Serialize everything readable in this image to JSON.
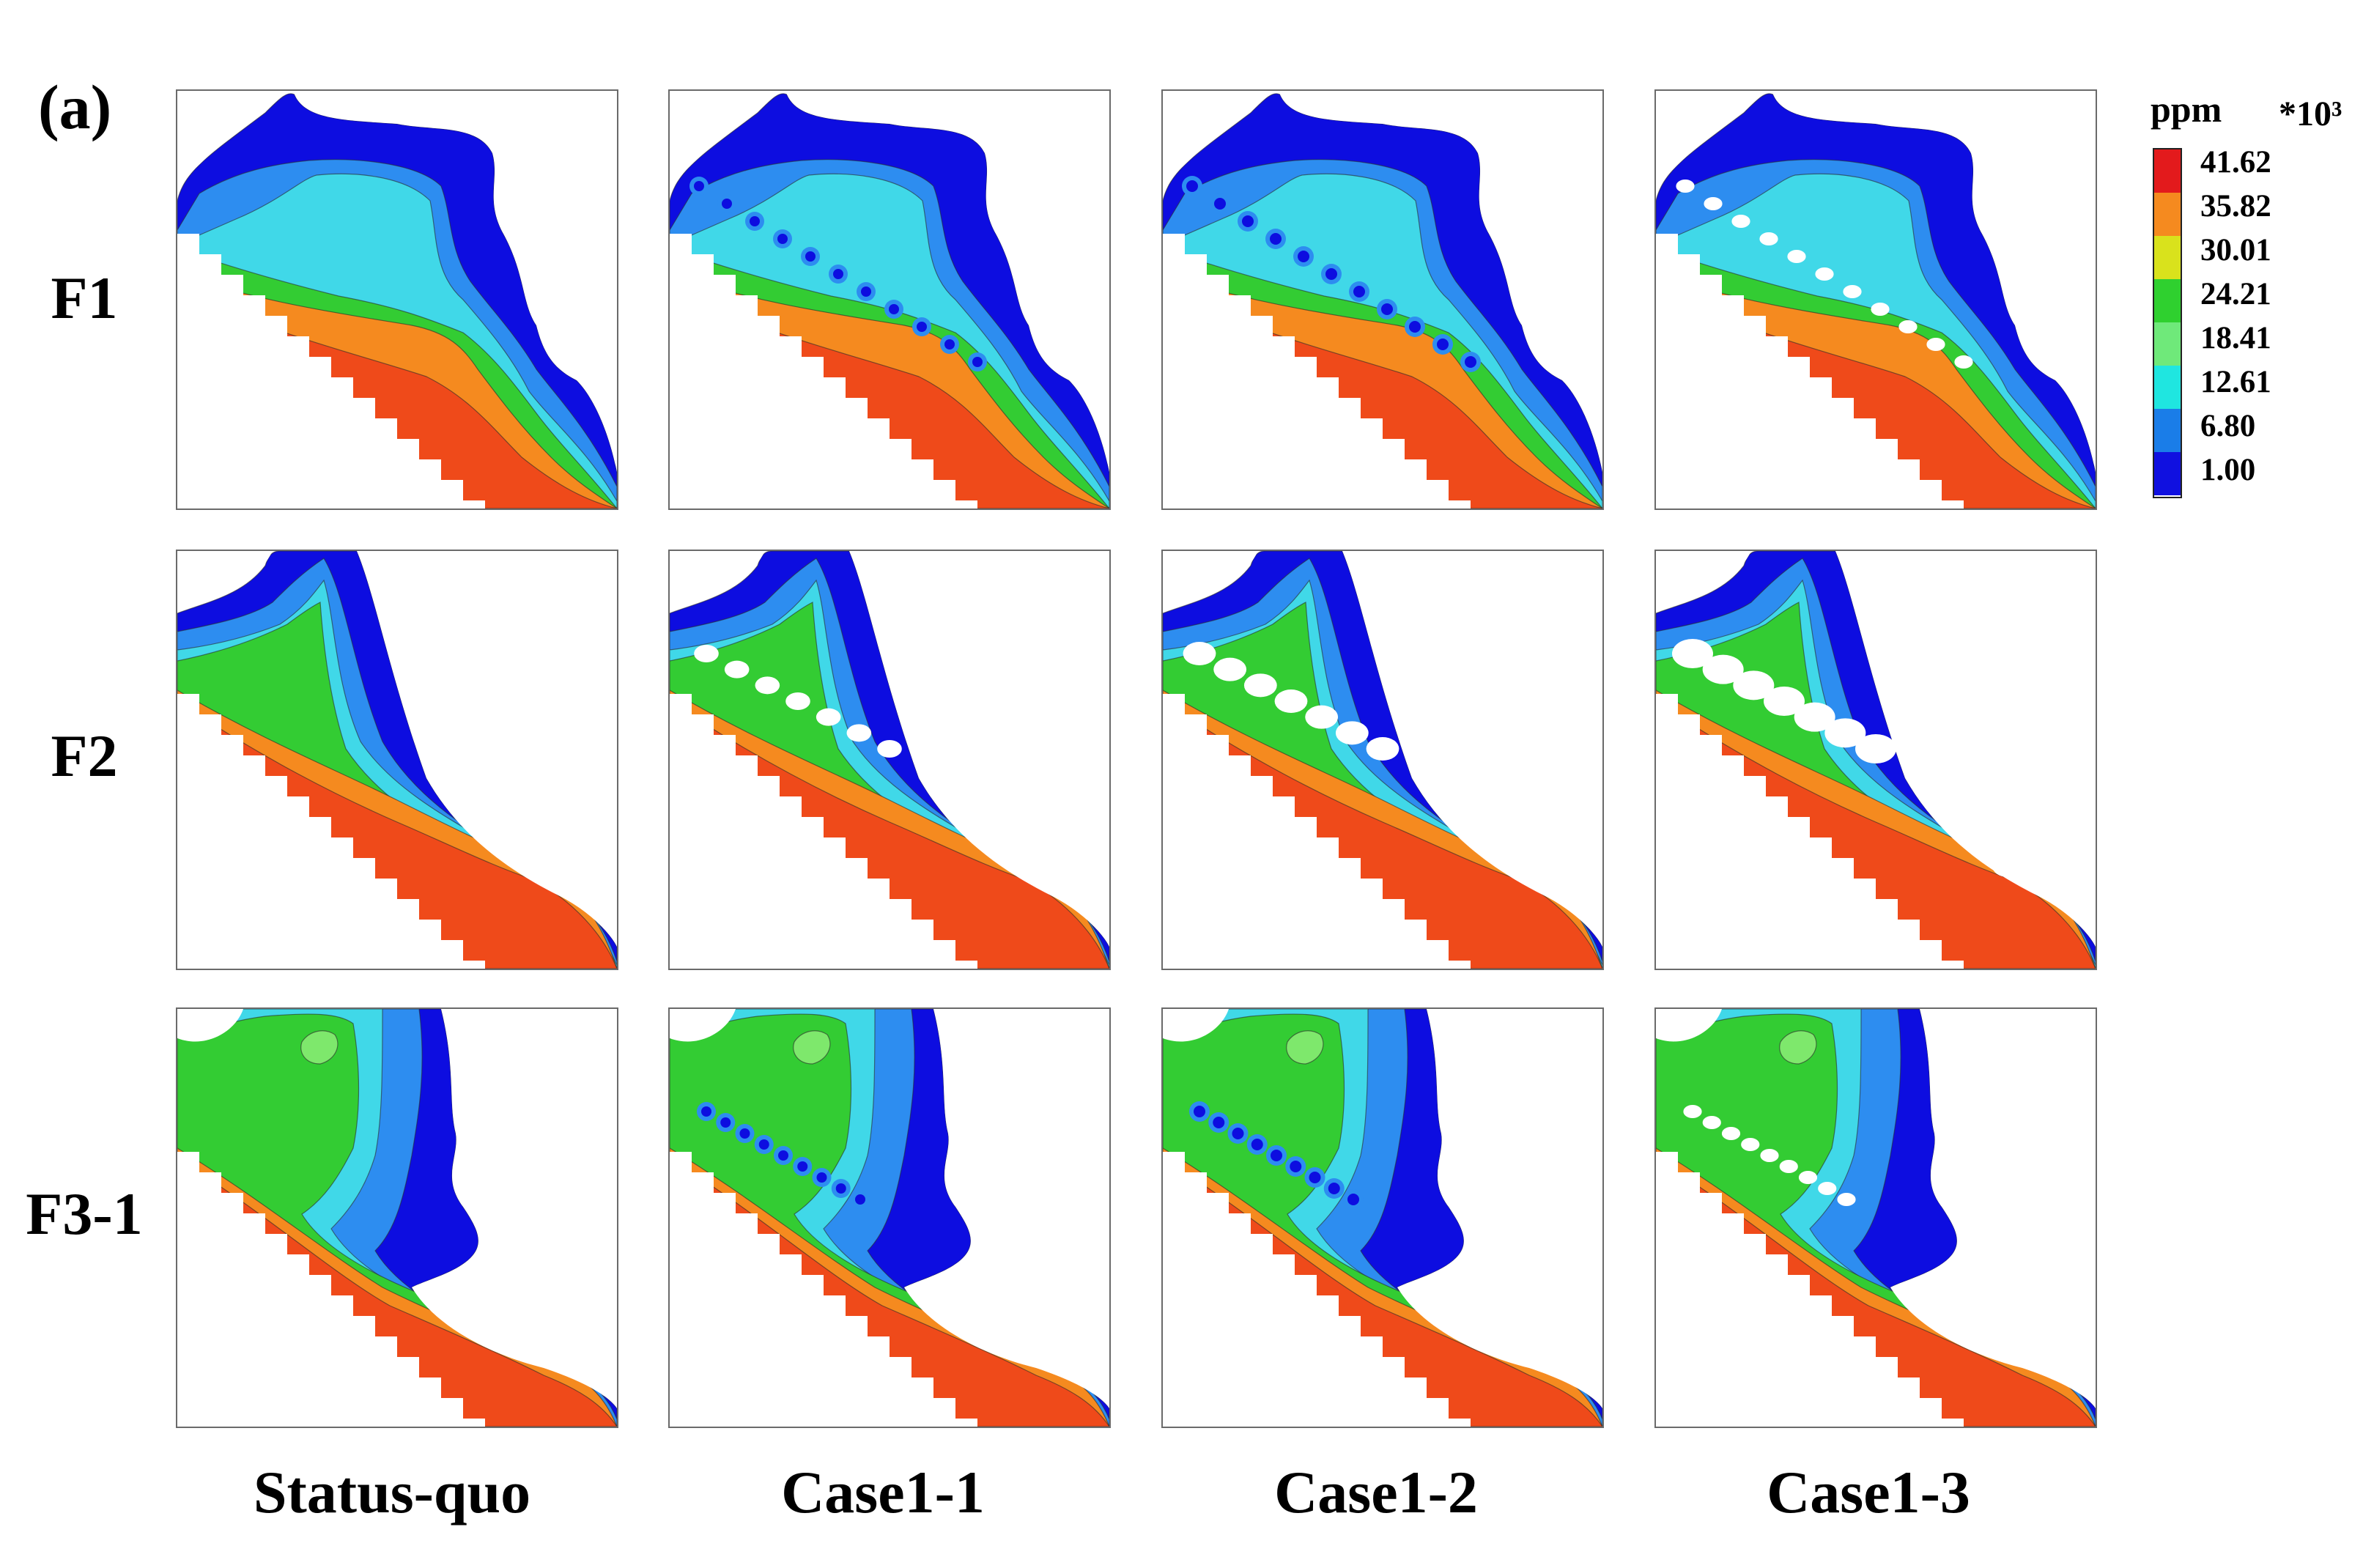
{
  "panel_label": "(a)",
  "rows": [
    "F1",
    "F2",
    "F3-1"
  ],
  "columns": [
    "Status-quo",
    "Case1-1",
    "Case1-2",
    "Case1-3"
  ],
  "legend": {
    "unit": "ppm",
    "scale": "*10³",
    "ticks": [
      "41.62",
      "35.82",
      "30.01",
      "24.21",
      "18.41",
      "12.61",
      "6.80",
      "1.00"
    ],
    "colors": [
      "#e31a1c",
      "#f58a1f",
      "#d9e21c",
      "#2fd02f",
      "#6fe97a",
      "#1fe6e0",
      "#1a7de8",
      "#1010e0"
    ]
  },
  "colors": {
    "high": "#ef4a1a",
    "orange": "#f58a1f",
    "green": "#33cc33",
    "light_green": "#7ee86c",
    "cyan": "#40d8e8",
    "light_blue": "#2d8df0",
    "blue": "#1238e6",
    "deep_blue": "#0d0de0",
    "contour": "#2a2a2a"
  }
}
